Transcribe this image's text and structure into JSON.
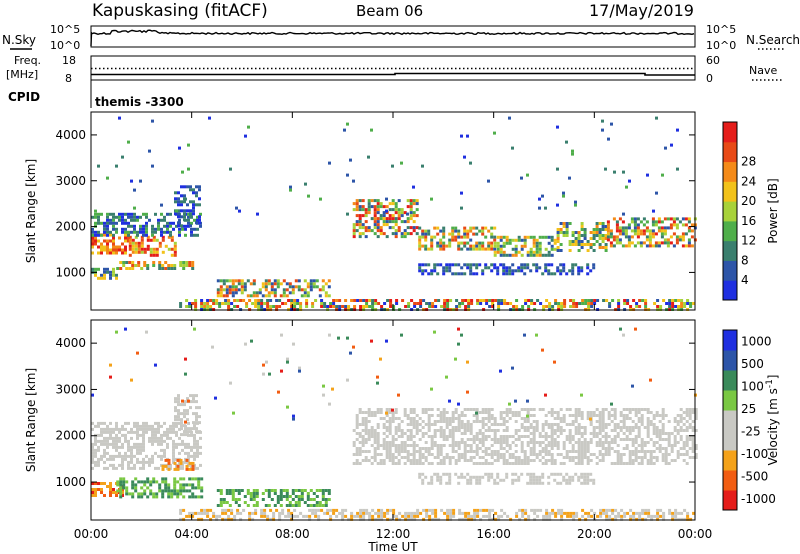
{
  "header": {
    "station": "Kapuskasing (fitACF)",
    "beam": "Beam 06",
    "date": "17/May/2019"
  },
  "panels": {
    "nsky_label": "N.Sky",
    "nsearch_label": "N.Search",
    "freq_label_1": "Freq.",
    "freq_label_2": "[MHz]",
    "nave_label": "Nave",
    "cpid_label": "CPID",
    "cpid_text": "themis -3300",
    "noise_left_ticks": [
      "10^5",
      "10^0"
    ],
    "noise_right_ticks": [
      "10^5",
      "10^0"
    ],
    "freq_left_ticks": [
      "18",
      "8"
    ],
    "freq_right_ticks": [
      "60",
      "0"
    ]
  },
  "colors": {
    "power": [
      "#1f2fe0",
      "#2d55a8",
      "#3a7f6e",
      "#4fae4a",
      "#a8d23a",
      "#f2c21a",
      "#f48a18",
      "#e84a16",
      "#e51d1a"
    ],
    "velocity": [
      "#e51d1a",
      "#f25d12",
      "#f4a21a",
      "#c9c9c4",
      "#c9c9c4",
      "#7ac843",
      "#3a8a5a",
      "#2d55a8",
      "#1f2fe0"
    ]
  },
  "chart_data": {
    "type": "heatmap",
    "xlabel": "Time UT",
    "x_ticks": [
      "00:00",
      "04:00",
      "08:00",
      "12:00",
      "16:00",
      "20:00",
      "00:00"
    ],
    "xlim_hours": [
      0,
      24
    ],
    "ylim_km": [
      180,
      4500
    ],
    "y_ticks": [
      1000,
      2000,
      3000,
      4000
    ],
    "panels": [
      {
        "name": "power",
        "ylabel": "Slant Range [km]",
        "colorbar_label": "Power [dB]",
        "colorbar_ticks": [
          "4",
          "8",
          "12",
          "16",
          "20",
          "24",
          "28"
        ],
        "regions": [
          {
            "t": [
              0.0,
              1.5
            ],
            "y": [
              1450,
              1850
            ],
            "lvl": [
              5,
              8
            ]
          },
          {
            "t": [
              1.5,
              3.3
            ],
            "y": [
              1400,
              1800
            ],
            "lvl": [
              4,
              8
            ]
          },
          {
            "t": [
              0.0,
              4.3
            ],
            "y": [
              1800,
              2300
            ],
            "lvl": [
              0,
              3
            ]
          },
          {
            "t": [
              0.0,
              1.0
            ],
            "y": [
              850,
              1100
            ],
            "lvl": [
              1,
              5
            ]
          },
          {
            "t": [
              1.0,
              4.0
            ],
            "y": [
              1100,
              1250
            ],
            "lvl": [
              2,
              7
            ]
          },
          {
            "t": [
              3.3,
              4.3
            ],
            "y": [
              2000,
              2900
            ],
            "lvl": [
              0,
              2
            ]
          },
          {
            "t": [
              5.0,
              9.5
            ],
            "y": [
              500,
              850
            ],
            "lvl": [
              1,
              7
            ]
          },
          {
            "t": [
              3.5,
              24.0
            ],
            "y": [
              180,
              420
            ],
            "lvl": [
              0,
              8
            ]
          },
          {
            "t": [
              10.4,
              13.0
            ],
            "y": [
              1800,
              2600
            ],
            "lvl": [
              1,
              8
            ]
          },
          {
            "t": [
              13.0,
              16.0
            ],
            "y": [
              1500,
              2000
            ],
            "lvl": [
              1,
              7
            ]
          },
          {
            "t": [
              16.0,
              18.5
            ],
            "y": [
              1350,
              1800
            ],
            "lvl": [
              1,
              6
            ]
          },
          {
            "t": [
              18.5,
              20.5
            ],
            "y": [
              1500,
              2100
            ],
            "lvl": [
              1,
              6
            ]
          },
          {
            "t": [
              20.5,
              24.0
            ],
            "y": [
              1600,
              2200
            ],
            "lvl": [
              1,
              8
            ]
          },
          {
            "t": [
              13.0,
              20.0
            ],
            "y": [
              950,
              1200
            ],
            "lvl": [
              0,
              2
            ]
          },
          {
            "t": [
              0.0,
              24.0
            ],
            "y": [
              2300,
              4400
            ],
            "lvl": [
              0,
              3
            ],
            "sparse": true
          }
        ]
      },
      {
        "name": "velocity",
        "ylabel": "Slant Range [km]",
        "colorbar_label": "Velocity [m s^-1]",
        "colorbar_ticks": [
          "1000",
          "500",
          "100",
          "25",
          "-25",
          "-100",
          "-500",
          "-1000"
        ],
        "regions": [
          {
            "t": [
              0.0,
              4.3
            ],
            "y": [
              1300,
              2300
            ],
            "lvl": [
              3,
              4
            ]
          },
          {
            "t": [
              3.3,
              4.3
            ],
            "y": [
              2000,
              2900
            ],
            "lvl": [
              3,
              4
            ]
          },
          {
            "t": [
              0.0,
              1.2
            ],
            "y": [
              700,
              1000
            ],
            "lvl": [
              0,
              2
            ]
          },
          {
            "t": [
              2.8,
              4.0
            ],
            "y": [
              1250,
              1500
            ],
            "lvl": [
              1,
              2
            ]
          },
          {
            "t": [
              1.0,
              4.5
            ],
            "y": [
              700,
              1100
            ],
            "lvl": [
              5,
              6
            ]
          },
          {
            "t": [
              5.0,
              9.5
            ],
            "y": [
              500,
              850
            ],
            "lvl": [
              5,
              6
            ]
          },
          {
            "t": [
              3.5,
              24.0
            ],
            "y": [
              180,
              420
            ],
            "lvl": [
              2,
              4
            ]
          },
          {
            "t": [
              10.4,
              24.0
            ],
            "y": [
              1400,
              2600
            ],
            "lvl": [
              3,
              4
            ]
          },
          {
            "t": [
              13.0,
              20.0
            ],
            "y": [
              950,
              1200
            ],
            "lvl": [
              3,
              4
            ]
          },
          {
            "t": [
              0.0,
              24.0
            ],
            "y": [
              2300,
              4400
            ],
            "lvl": [
              0,
              8
            ],
            "sparse": true
          }
        ]
      }
    ]
  }
}
